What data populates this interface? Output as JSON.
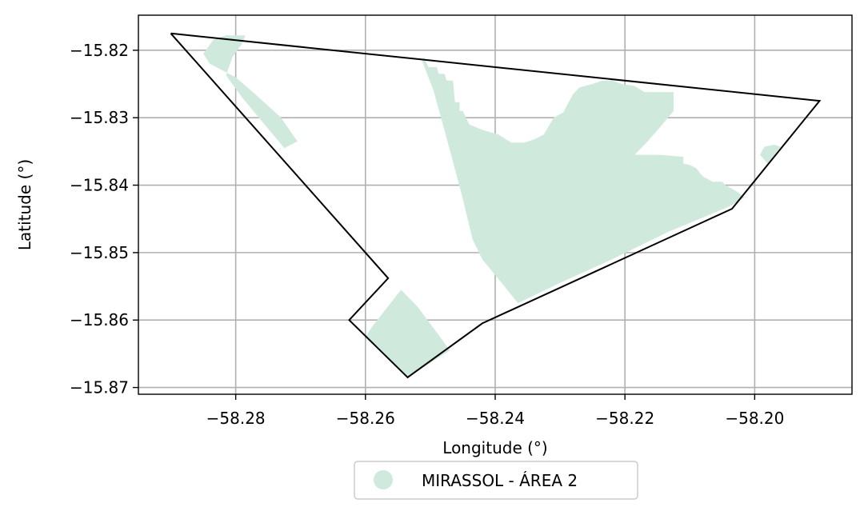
{
  "chart_data": {
    "type": "map",
    "title": "",
    "xlabel": "Longitude (°)",
    "ylabel": "Latitude (°)",
    "xlim": [
      -58.295,
      -58.185
    ],
    "ylim": [
      -15.871,
      -15.8148
    ],
    "xticks": [
      -58.28,
      -58.26,
      -58.24,
      -58.22,
      -58.2
    ],
    "xtick_labels": [
      "−58.28",
      "−58.26",
      "−58.24",
      "−58.22",
      "−58.20"
    ],
    "yticks": [
      -15.82,
      -15.83,
      -15.84,
      -15.85,
      -15.86,
      -15.87
    ],
    "ytick_labels": [
      "−15.82",
      "−15.83",
      "−15.84",
      "−15.85",
      "−15.86",
      "−15.87"
    ],
    "grid": true,
    "legend": {
      "placement": "bottom-center",
      "entries": [
        {
          "label": "MIRASSOL - ÁREA 2",
          "color": "#cfeadd"
        }
      ]
    },
    "colors": {
      "fill": "#cfeadd",
      "outline": "#000000",
      "grid": "#b0b0b0"
    },
    "boundary": [
      [
        -58.29,
        -15.8175
      ],
      [
        -58.19,
        -15.8275
      ],
      [
        -58.2035,
        -15.8435
      ],
      [
        -58.242,
        -15.8605
      ],
      [
        -58.2535,
        -15.8685
      ],
      [
        -58.2625,
        -15.86
      ],
      [
        -58.2565,
        -15.8538
      ],
      [
        -58.29,
        -15.8175
      ]
    ],
    "areas": [
      [
        [
          -58.285,
          -15.8205
        ],
        [
          -58.2835,
          -15.8185
        ],
        [
          -58.2815,
          -15.8178
        ],
        [
          -58.2785,
          -15.8178
        ],
        [
          -58.279,
          -15.819
        ],
        [
          -58.2805,
          -15.821
        ],
        [
          -58.2815,
          -15.8237
        ],
        [
          -58.279,
          -15.827
        ],
        [
          -58.276,
          -15.8305
        ],
        [
          -58.2725,
          -15.8345
        ],
        [
          -58.2705,
          -15.8335
        ],
        [
          -58.273,
          -15.83
        ],
        [
          -58.277,
          -15.8265
        ],
        [
          -58.28,
          -15.824
        ],
        [
          -58.284,
          -15.822
        ]
      ],
      [
        [
          -58.251,
          -15.821
        ],
        [
          -58.2503,
          -15.8225
        ],
        [
          -58.249,
          -15.8225
        ],
        [
          -58.2487,
          -15.8235
        ],
        [
          -58.2478,
          -15.8235
        ],
        [
          -58.2475,
          -15.8245
        ],
        [
          -58.2465,
          -15.8245
        ],
        [
          -58.2462,
          -15.8277
        ],
        [
          -58.2455,
          -15.8277
        ],
        [
          -58.2455,
          -15.829
        ],
        [
          -58.245,
          -15.829
        ],
        [
          -58.2445,
          -15.83
        ],
        [
          -58.244,
          -15.831
        ],
        [
          -58.242,
          -15.8318
        ],
        [
          -58.2395,
          -15.8325
        ],
        [
          -58.2375,
          -15.8337
        ],
        [
          -58.2355,
          -15.8337
        ],
        [
          -58.234,
          -15.8332
        ],
        [
          -58.2325,
          -15.8325
        ],
        [
          -58.231,
          -15.83
        ],
        [
          -58.2295,
          -15.8292
        ],
        [
          -58.228,
          -15.8265
        ],
        [
          -58.227,
          -15.8255
        ],
        [
          -58.225,
          -15.825
        ],
        [
          -58.2235,
          -15.8245
        ],
        [
          -58.222,
          -15.8245
        ],
        [
          -58.2205,
          -15.825
        ],
        [
          -58.2185,
          -15.8253
        ],
        [
          -58.217,
          -15.8262
        ],
        [
          -58.214,
          -15.8262
        ],
        [
          -58.2125,
          -15.8262
        ],
        [
          -58.2125,
          -15.829
        ],
        [
          -58.2145,
          -15.8313
        ],
        [
          -58.2165,
          -15.8335
        ],
        [
          -58.2185,
          -15.8355
        ],
        [
          -58.2145,
          -15.8355
        ],
        [
          -58.211,
          -15.8358
        ],
        [
          -58.211,
          -15.8368
        ],
        [
          -58.21,
          -15.837
        ],
        [
          -58.209,
          -15.8375
        ],
        [
          -58.208,
          -15.8387
        ],
        [
          -58.2065,
          -15.8395
        ],
        [
          -58.205,
          -15.8395
        ],
        [
          -58.2045,
          -15.84
        ],
        [
          -58.203,
          -15.8408
        ],
        [
          -58.2015,
          -15.8418
        ],
        [
          -58.204,
          -15.8432
        ],
        [
          -58.2135,
          -15.847
        ],
        [
          -58.222,
          -15.851
        ],
        [
          -58.23,
          -15.8545
        ],
        [
          -58.2365,
          -15.8575
        ],
        [
          -58.239,
          -15.8545
        ],
        [
          -58.242,
          -15.851
        ],
        [
          -58.2435,
          -15.848
        ],
        [
          -58.245,
          -15.842
        ],
        [
          -58.2475,
          -15.833
        ],
        [
          -58.2495,
          -15.826
        ],
        [
          -58.2513,
          -15.8215
        ]
      ],
      [
        [
          -58.259,
          -15.861
        ],
        [
          -58.2545,
          -15.8555
        ],
        [
          -58.252,
          -15.858
        ],
        [
          -58.2485,
          -15.8625
        ],
        [
          -58.247,
          -15.8645
        ],
        [
          -58.2535,
          -15.8685
        ],
        [
          -58.258,
          -15.864
        ],
        [
          -58.26,
          -15.8625
        ]
      ],
      [
        [
          -58.1992,
          -15.8355
        ],
        [
          -58.1985,
          -15.8343
        ],
        [
          -58.197,
          -15.834
        ],
        [
          -58.196,
          -15.8343
        ],
        [
          -58.198,
          -15.8368
        ]
      ]
    ]
  }
}
